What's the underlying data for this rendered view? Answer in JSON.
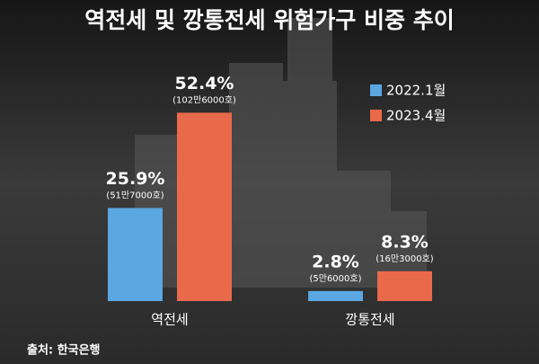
{
  "chart_data": {
    "type": "bar",
    "title": "역전세 및 깡통전세 위험가구 비중 추이",
    "categories": [
      "역전세",
      "깡통전세"
    ],
    "series": [
      {
        "name": "2022.1월",
        "color": "#5ba7e2",
        "values": [
          25.9,
          2.8
        ],
        "value_labels": [
          "25.9%",
          "2.8%"
        ],
        "count_labels": [
          "(51만7000호)",
          "(5만6000호)"
        ]
      },
      {
        "name": "2023.4월",
        "color": "#e9694b",
        "values": [
          52.4,
          8.3
        ],
        "value_labels": [
          "52.4%",
          "8.3%"
        ],
        "count_labels": [
          "(102만6000호)",
          "(16만3000호)"
        ]
      }
    ],
    "source": "출처: 한국은행"
  }
}
